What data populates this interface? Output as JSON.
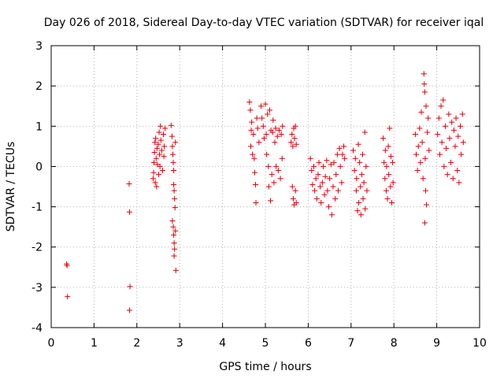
{
  "chart_data": {
    "type": "scatter",
    "title": "Day 026 of 2018, Sidereal Day-to-day VTEC variation (SDTVAR) for receiver iqal",
    "xlabel": "GPS time / hours",
    "ylabel": "SDTVAR / TECUs",
    "xlim": [
      0,
      10
    ],
    "ylim": [
      -4,
      3
    ],
    "x_ticks": [
      "0",
      "1",
      "2",
      "3",
      "4",
      "5",
      "6",
      "7",
      "8",
      "9",
      "10"
    ],
    "y_ticks": [
      "-4",
      "-3",
      "-2",
      "-1",
      "0",
      "1",
      "2",
      "3"
    ],
    "grid": true,
    "marker": "+",
    "color": "#e00000",
    "series": [
      {
        "name": "SDTVAR",
        "points": [
          [
            0.36,
            -2.42
          ],
          [
            0.37,
            -2.46
          ],
          [
            0.38,
            -3.23
          ],
          [
            1.82,
            -0.43
          ],
          [
            1.83,
            -1.13
          ],
          [
            1.84,
            -2.98
          ],
          [
            1.83,
            -3.57
          ],
          [
            2.38,
            -0.3
          ],
          [
            2.39,
            -0.15
          ],
          [
            2.4,
            0.1
          ],
          [
            2.41,
            0.35
          ],
          [
            2.42,
            0.6
          ],
          [
            2.43,
            -0.4
          ],
          [
            2.44,
            0.7
          ],
          [
            2.45,
            0.2
          ],
          [
            2.46,
            -0.5
          ],
          [
            2.47,
            0.45
          ],
          [
            2.48,
            0.05
          ],
          [
            2.5,
            0.55
          ],
          [
            2.51,
            -0.2
          ],
          [
            2.52,
            0.85
          ],
          [
            2.53,
            0.3
          ],
          [
            2.54,
            0.0
          ],
          [
            2.55,
            1.0
          ],
          [
            2.56,
            0.65
          ],
          [
            2.58,
            0.4
          ],
          [
            2.6,
            -0.1
          ],
          [
            2.62,
            0.8
          ],
          [
            2.63,
            0.25
          ],
          [
            2.64,
            0.5
          ],
          [
            2.66,
            0.95
          ],
          [
            2.8,
            1.02
          ],
          [
            2.82,
            0.75
          ],
          [
            2.83,
            0.5
          ],
          [
            2.84,
            0.3
          ],
          [
            2.85,
            0.1
          ],
          [
            2.86,
            -0.1
          ],
          [
            2.86,
            -0.45
          ],
          [
            2.87,
            -0.6
          ],
          [
            2.88,
            -0.8
          ],
          [
            2.89,
            -1.02
          ],
          [
            2.83,
            -1.35
          ],
          [
            2.85,
            -1.5
          ],
          [
            2.86,
            -1.7
          ],
          [
            2.87,
            -1.9
          ],
          [
            2.88,
            -2.05
          ],
          [
            2.87,
            -2.22
          ],
          [
            2.91,
            -2.58
          ],
          [
            2.9,
            0.6
          ],
          [
            2.9,
            -1.6
          ],
          [
            4.63,
            1.6
          ],
          [
            4.65,
            1.4
          ],
          [
            4.66,
            0.5
          ],
          [
            4.67,
            0.9
          ],
          [
            4.68,
            1.1
          ],
          [
            4.7,
            0.3
          ],
          [
            4.72,
            0.8
          ],
          [
            4.74,
            0.2
          ],
          [
            4.75,
            -0.15
          ],
          [
            4.77,
            -0.45
          ],
          [
            4.78,
            -0.9
          ],
          [
            4.8,
            1.2
          ],
          [
            4.82,
            0.95
          ],
          [
            4.85,
            0.6
          ],
          [
            4.9,
            1.5
          ],
          [
            4.92,
            1.2
          ],
          [
            4.95,
            1.0
          ],
          [
            4.97,
            0.7
          ],
          [
            5.0,
            1.55
          ],
          [
            5.02,
            0.8
          ],
          [
            5.03,
            0.3
          ],
          [
            5.05,
            1.3
          ],
          [
            5.07,
            0.0
          ],
          [
            5.08,
            -0.5
          ],
          [
            5.1,
            1.4
          ],
          [
            5.12,
            -0.85
          ],
          [
            5.13,
            0.9
          ],
          [
            5.15,
            -0.2
          ],
          [
            5.17,
            0.85
          ],
          [
            5.18,
            1.15
          ],
          [
            5.2,
            -0.4
          ],
          [
            5.22,
            0.6
          ],
          [
            5.24,
            0.95
          ],
          [
            5.25,
            0.0
          ],
          [
            5.28,
            0.75
          ],
          [
            5.3,
            -0.1
          ],
          [
            5.32,
            0.9
          ],
          [
            5.35,
            -0.3
          ],
          [
            5.37,
            0.8
          ],
          [
            5.39,
            0.2
          ],
          [
            5.4,
            1.0
          ],
          [
            5.6,
            0.6
          ],
          [
            5.62,
            0.8
          ],
          [
            5.64,
            0.5
          ],
          [
            5.66,
            0.95
          ],
          [
            5.68,
            0.7
          ],
          [
            5.7,
            1.0
          ],
          [
            5.72,
            0.55
          ],
          [
            5.63,
            -0.5
          ],
          [
            5.65,
            -0.8
          ],
          [
            5.67,
            -0.95
          ],
          [
            5.7,
            -0.6
          ],
          [
            5.72,
            -0.9
          ],
          [
            6.05,
            0.2
          ],
          [
            6.08,
            -0.1
          ],
          [
            6.1,
            -0.45
          ],
          [
            6.13,
            0.0
          ],
          [
            6.15,
            -0.6
          ],
          [
            6.18,
            -0.3
          ],
          [
            6.2,
            -0.8
          ],
          [
            6.23,
            -0.2
          ],
          [
            6.25,
            0.1
          ],
          [
            6.28,
            -0.5
          ],
          [
            6.3,
            -0.9
          ],
          [
            6.33,
            -0.4
          ],
          [
            6.35,
            0.0
          ],
          [
            6.38,
            -0.7
          ],
          [
            6.4,
            -0.25
          ],
          [
            6.43,
            0.15
          ],
          [
            6.45,
            -0.6
          ],
          [
            6.48,
            -1.0
          ],
          [
            6.5,
            -0.3
          ],
          [
            6.53,
            0.05
          ],
          [
            6.55,
            -1.2
          ],
          [
            6.58,
            -0.5
          ],
          [
            6.6,
            0.1
          ],
          [
            6.63,
            -0.8
          ],
          [
            6.65,
            -0.2
          ],
          [
            6.68,
            0.3
          ],
          [
            6.7,
            -0.6
          ],
          [
            6.73,
            0.45
          ],
          [
            6.75,
            0.0
          ],
          [
            6.78,
            -0.4
          ],
          [
            6.8,
            0.3
          ],
          [
            6.83,
            0.5
          ],
          [
            6.85,
            0.2
          ],
          [
            7.05,
            0.4
          ],
          [
            7.08,
            -0.1
          ],
          [
            7.1,
            0.2
          ],
          [
            7.12,
            -0.6
          ],
          [
            7.13,
            -0.3
          ],
          [
            7.15,
            -1.1
          ],
          [
            7.17,
            0.55
          ],
          [
            7.18,
            -0.9
          ],
          [
            7.2,
            0.1
          ],
          [
            7.22,
            -0.5
          ],
          [
            7.23,
            -1.2
          ],
          [
            7.25,
            -0.2
          ],
          [
            7.27,
            0.3
          ],
          [
            7.28,
            -0.8
          ],
          [
            7.3,
            -0.4
          ],
          [
            7.32,
            0.85
          ],
          [
            7.33,
            -1.05
          ],
          [
            7.35,
            0.0
          ],
          [
            7.37,
            -0.6
          ],
          [
            7.75,
            0.7
          ],
          [
            7.77,
            0.1
          ],
          [
            7.79,
            -0.3
          ],
          [
            7.8,
            0.4
          ],
          [
            7.82,
            -0.6
          ],
          [
            7.83,
            0.0
          ],
          [
            7.85,
            -0.8
          ],
          [
            7.87,
            0.5
          ],
          [
            7.88,
            -0.2
          ],
          [
            7.9,
            0.95
          ],
          [
            7.92,
            -0.5
          ],
          [
            7.93,
            0.25
          ],
          [
            7.95,
            -0.9
          ],
          [
            7.97,
            0.1
          ],
          [
            7.98,
            -0.4
          ],
          [
            8.5,
            0.8
          ],
          [
            8.52,
            0.3
          ],
          [
            8.55,
            -0.1
          ],
          [
            8.57,
            0.5
          ],
          [
            8.6,
            0.95
          ],
          [
            8.62,
            0.1
          ],
          [
            8.64,
            1.35
          ],
          [
            8.66,
            0.6
          ],
          [
            8.68,
            -0.3
          ],
          [
            8.7,
            2.3
          ],
          [
            8.71,
            2.05
          ],
          [
            8.72,
            1.85
          ],
          [
            8.73,
            0.2
          ],
          [
            8.74,
            -0.6
          ],
          [
            8.75,
            1.5
          ],
          [
            8.76,
            -0.95
          ],
          [
            8.72,
            -1.4
          ],
          [
            8.78,
            0.85
          ],
          [
            8.8,
            1.2
          ],
          [
            8.82,
            0.4
          ],
          [
            9.02,
            0.8
          ],
          [
            9.05,
            1.2
          ],
          [
            9.07,
            0.3
          ],
          [
            9.1,
            1.5
          ],
          [
            9.12,
            0.6
          ],
          [
            9.15,
            1.65
          ],
          [
            9.17,
            0.0
          ],
          [
            9.2,
            1.0
          ],
          [
            9.22,
            0.45
          ],
          [
            9.25,
            -0.2
          ],
          [
            9.28,
            1.3
          ],
          [
            9.3,
            0.7
          ],
          [
            9.33,
            0.1
          ],
          [
            9.35,
            1.1
          ],
          [
            9.38,
            -0.3
          ],
          [
            9.4,
            0.9
          ],
          [
            9.43,
            0.5
          ],
          [
            9.45,
            1.2
          ],
          [
            9.48,
            -0.1
          ],
          [
            9.5,
            0.75
          ],
          [
            9.52,
            -0.4
          ],
          [
            9.55,
            1.0
          ],
          [
            9.57,
            0.3
          ],
          [
            9.6,
            1.3
          ],
          [
            9.62,
            0.6
          ]
        ]
      }
    ]
  }
}
